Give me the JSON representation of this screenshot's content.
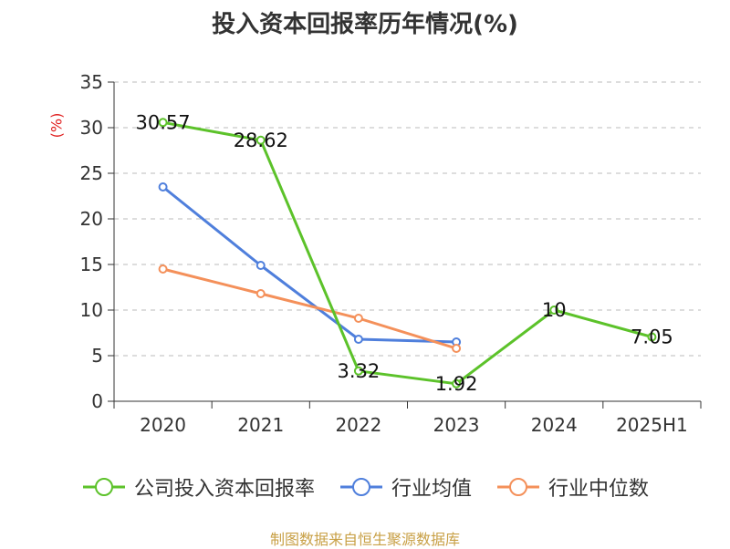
{
  "title": "投入资本回报率历年情况(%)",
  "source": "制图数据来自恒生聚源数据库",
  "chart_data": {
    "type": "line",
    "categories": [
      "2020",
      "2021",
      "2022",
      "2023",
      "2024",
      "2025H1"
    ],
    "ylabel": "(%)",
    "ylim": [
      0,
      35
    ],
    "yticks": [
      0,
      5,
      10,
      15,
      20,
      25,
      30,
      35
    ],
    "grid": true,
    "legend_position": "bottom",
    "series": [
      {
        "name": "公司投入资本回报率",
        "color": "#5cc22a",
        "values": [
          30.57,
          28.62,
          3.32,
          1.92,
          10,
          7.05
        ],
        "labels": [
          "30.57",
          "28.62",
          "3.32",
          "1.92",
          "10",
          "7.05"
        ]
      },
      {
        "name": "行业均值",
        "color": "#4f7fdc",
        "values": [
          23.5,
          14.9,
          6.8,
          6.5,
          null,
          null
        ]
      },
      {
        "name": "行业中位数",
        "color": "#f4905a",
        "values": [
          14.5,
          11.8,
          9.1,
          5.8,
          null,
          null
        ]
      }
    ]
  }
}
